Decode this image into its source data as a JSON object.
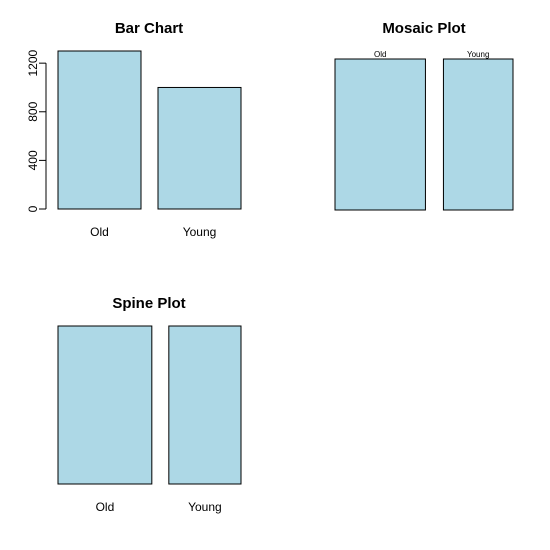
{
  "chart_data": [
    {
      "type": "bar",
      "title": "Bar Chart",
      "categories": [
        "Old",
        "Young"
      ],
      "values": [
        1300,
        1000
      ],
      "ylim": [
        0,
        1300
      ],
      "yticks": [
        "0",
        "400",
        "800",
        "1200"
      ],
      "color": "#add8e6"
    },
    {
      "type": "mosaic",
      "title": "Mosaic Plot",
      "categories": [
        "Old",
        "Young"
      ],
      "values": [
        1300,
        1000
      ],
      "color": "#add8e6"
    },
    {
      "type": "spine",
      "title": "Spine Plot",
      "categories": [
        "Old",
        "Young"
      ],
      "values": [
        1300,
        1000
      ],
      "color": "#add8e6"
    }
  ]
}
